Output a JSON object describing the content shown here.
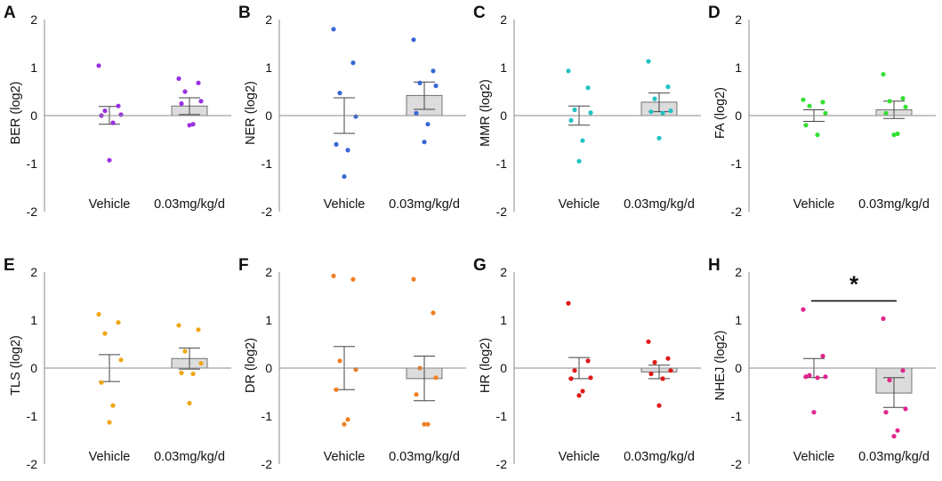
{
  "chart_data": [
    {
      "panel": "A",
      "type": "bar",
      "ylabel": "BER (log2)",
      "ylim": [
        -2,
        2
      ],
      "yticks": [
        "2",
        "1",
        "0",
        "-1",
        "-2"
      ],
      "categories": [
        "Vehicle",
        "0.03mg/kg/d"
      ],
      "color": "#9b30e0",
      "series": [
        {
          "name": "Vehicle",
          "mean": 0.0,
          "sem_low": -0.18,
          "sem_high": 0.19,
          "points": [
            1.04,
            0.2,
            0.1,
            0.02,
            0.0,
            -0.15,
            -0.93
          ]
        },
        {
          "name": "0.03mg/kg/d",
          "mean": 0.2,
          "sem_low": 0.02,
          "sem_high": 0.37,
          "points": [
            0.77,
            0.68,
            0.5,
            0.3,
            0.25,
            -0.18,
            -0.2
          ]
        }
      ],
      "significance": null
    },
    {
      "panel": "B",
      "type": "bar",
      "ylabel": "NER (log2)",
      "ylim": [
        -2,
        2
      ],
      "yticks": [
        "2",
        "1",
        "0",
        "-1",
        "-2"
      ],
      "categories": [
        "Vehicle",
        "0.03mg/kg/d"
      ],
      "color": "#3a66d6",
      "series": [
        {
          "name": "Vehicle",
          "mean": 0.0,
          "sem_low": -0.37,
          "sem_high": 0.37,
          "points": [
            1.8,
            1.1,
            0.47,
            -0.02,
            -0.6,
            -0.72,
            -1.27
          ]
        },
        {
          "name": "0.03mg/kg/d",
          "mean": 0.42,
          "sem_low": 0.13,
          "sem_high": 0.7,
          "points": [
            1.58,
            0.93,
            0.68,
            0.62,
            0.05,
            -0.18,
            -0.55
          ]
        }
      ],
      "significance": null
    },
    {
      "panel": "C",
      "type": "bar",
      "ylabel": "MMR (log2)",
      "ylim": [
        -2,
        2
      ],
      "yticks": [
        "2",
        "1",
        "0",
        "-1",
        "-2"
      ],
      "categories": [
        "Vehicle",
        "0.03mg/kg/d"
      ],
      "color": "#22c2c4",
      "series": [
        {
          "name": "Vehicle",
          "mean": 0.0,
          "sem_low": -0.2,
          "sem_high": 0.2,
          "points": [
            0.93,
            0.58,
            0.12,
            0.06,
            -0.1,
            -0.52,
            -0.95
          ]
        },
        {
          "name": "0.03mg/kg/d",
          "mean": 0.28,
          "sem_low": 0.08,
          "sem_high": 0.47,
          "points": [
            1.13,
            0.6,
            0.35,
            0.1,
            0.08,
            0.05,
            -0.47
          ]
        }
      ],
      "significance": null
    },
    {
      "panel": "D",
      "type": "bar",
      "ylabel": "FA (log2)",
      "ylim": [
        -2,
        2
      ],
      "yticks": [
        "2",
        "1",
        "0",
        "-1",
        "-2"
      ],
      "categories": [
        "Vehicle",
        "0.03mg/kg/d"
      ],
      "color": "#33e033",
      "series": [
        {
          "name": "Vehicle",
          "mean": 0.0,
          "sem_low": -0.12,
          "sem_high": 0.12,
          "points": [
            0.33,
            0.28,
            0.2,
            0.05,
            -0.2,
            -0.4
          ]
        },
        {
          "name": "0.03mg/kg/d",
          "mean": 0.12,
          "sem_low": -0.06,
          "sem_high": 0.3,
          "points": [
            0.86,
            0.36,
            0.3,
            0.18,
            0.05,
            -0.38,
            -0.4
          ]
        }
      ],
      "significance": null
    },
    {
      "panel": "E",
      "type": "bar",
      "ylabel": "TLS (log2)",
      "ylim": [
        -2,
        2
      ],
      "yticks": [
        "2",
        "1",
        "0",
        "-1",
        "-2"
      ],
      "categories": [
        "Vehicle",
        "0.03mg/kg/d"
      ],
      "color": "#f0a615",
      "series": [
        {
          "name": "Vehicle",
          "mean": 0.0,
          "sem_low": -0.28,
          "sem_high": 0.28,
          "points": [
            1.12,
            0.95,
            0.72,
            0.17,
            -0.3,
            -0.78,
            -1.13
          ]
        },
        {
          "name": "0.03mg/kg/d",
          "mean": 0.2,
          "sem_low": -0.02,
          "sem_high": 0.42,
          "points": [
            0.89,
            0.8,
            0.35,
            0.1,
            -0.1,
            -0.12,
            -0.73
          ]
        }
      ],
      "significance": null
    },
    {
      "panel": "F",
      "type": "bar",
      "ylabel": "DR (log2)",
      "ylim": [
        -2,
        2
      ],
      "yticks": [
        "2",
        "1",
        "0",
        "-1",
        "-2"
      ],
      "categories": [
        "Vehicle",
        "0.03mg/kg/d"
      ],
      "color": "#f07f22",
      "series": [
        {
          "name": "Vehicle",
          "mean": 0.0,
          "sem_low": -0.45,
          "sem_high": 0.45,
          "points": [
            1.92,
            1.85,
            0.15,
            -0.03,
            -0.45,
            -1.07,
            -1.17
          ]
        },
        {
          "name": "0.03mg/kg/d",
          "mean": -0.22,
          "sem_low": -0.68,
          "sem_high": 0.25,
          "points": [
            1.85,
            1.15,
            0.0,
            -0.2,
            -0.55,
            -1.17,
            -1.17
          ]
        }
      ],
      "significance": null
    },
    {
      "panel": "G",
      "type": "bar",
      "ylabel": "HR (log2)",
      "ylim": [
        -2,
        2
      ],
      "yticks": [
        "2",
        "1",
        "0",
        "-1",
        "-2"
      ],
      "categories": [
        "Vehicle",
        "0.03mg/kg/d"
      ],
      "color": "#e01818",
      "series": [
        {
          "name": "Vehicle",
          "mean": 0.0,
          "sem_low": -0.22,
          "sem_high": 0.22,
          "points": [
            1.35,
            0.15,
            -0.05,
            -0.2,
            -0.22,
            -0.48,
            -0.57
          ]
        },
        {
          "name": "0.03mg/kg/d",
          "mean": -0.08,
          "sem_low": -0.22,
          "sem_high": 0.06,
          "points": [
            0.55,
            0.2,
            0.12,
            -0.05,
            -0.12,
            -0.22,
            -0.78
          ]
        }
      ],
      "significance": null
    },
    {
      "panel": "H",
      "type": "bar",
      "ylabel": "NHEJ (log2)",
      "ylim": [
        -2,
        2
      ],
      "yticks": [
        "2",
        "1",
        "0",
        "-1",
        "-2"
      ],
      "categories": [
        "Vehicle",
        "0.03mg/kg/d"
      ],
      "color": "#e0258c",
      "series": [
        {
          "name": "Vehicle",
          "mean": 0.0,
          "sem_low": -0.2,
          "sem_high": 0.2,
          "points": [
            1.22,
            0.25,
            -0.15,
            -0.18,
            -0.18,
            -0.2,
            -0.92
          ]
        },
        {
          "name": "0.03mg/kg/d",
          "mean": -0.52,
          "sem_low": -0.82,
          "sem_high": -0.2,
          "points": [
            1.03,
            -0.05,
            -0.25,
            -0.85,
            -0.92,
            -1.3,
            -1.42
          ]
        }
      ],
      "significance": "*"
    }
  ]
}
